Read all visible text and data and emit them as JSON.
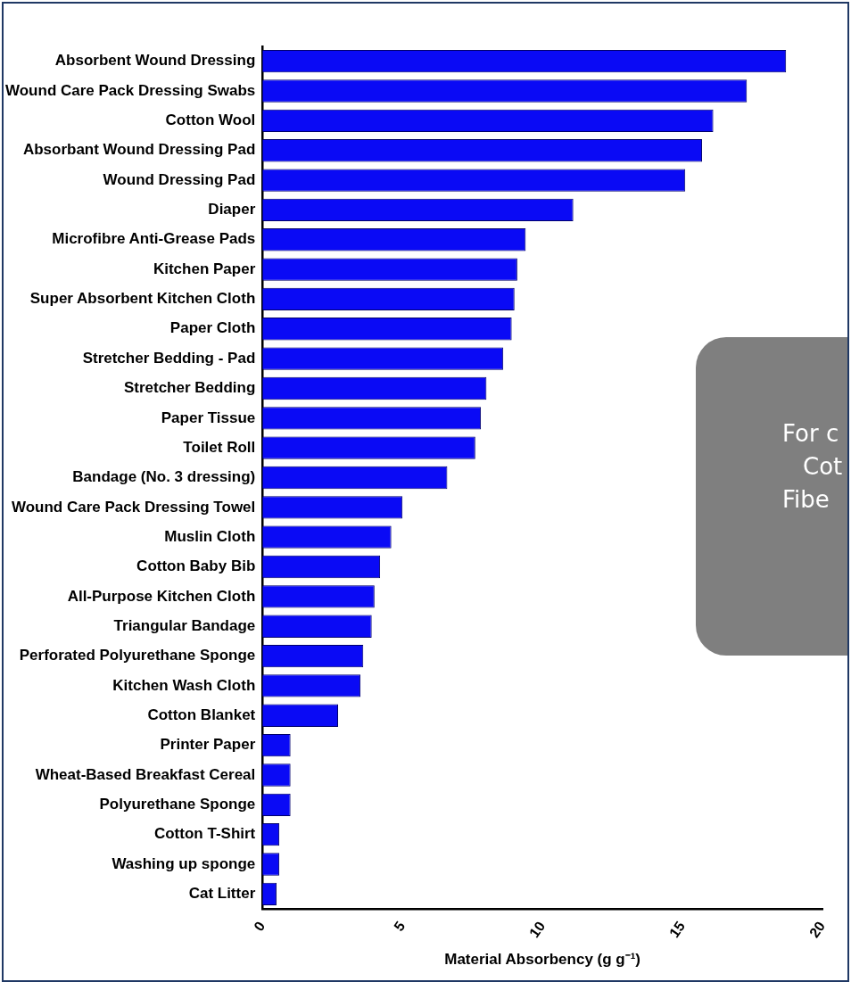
{
  "chart_data": {
    "type": "bar",
    "orientation": "horizontal",
    "xlabel": "Material Absorbency (g g⁻¹)",
    "categories": [
      "Absorbent Wound Dressing",
      "Wound Care Pack Dressing Swabs",
      "Cotton Wool",
      "Absorbant Wound Dressing Pad",
      "Wound Dressing Pad",
      "Diaper",
      "Microfibre Anti-Grease Pads",
      "Kitchen Paper",
      "Super Absorbent Kitchen Cloth",
      "Paper Cloth",
      "Stretcher Bedding - Pad",
      "Stretcher Bedding",
      "Paper Tissue",
      "Toilet Roll",
      "Bandage (No. 3 dressing)",
      "Wound Care Pack Dressing Towel",
      "Muslin Cloth",
      "Cotton Baby Bib",
      "All-Purpose Kitchen Cloth",
      "Triangular Bandage",
      "Perforated Polyurethane Sponge",
      "Kitchen Wash Cloth",
      "Cotton Blanket",
      "Printer Paper",
      "Wheat-Based Breakfast Cereal",
      "Polyurethane Sponge",
      "Cotton T-Shirt",
      "Washing up sponge",
      "Cat Litter"
    ],
    "values": [
      18.7,
      17.3,
      16.1,
      15.7,
      15.1,
      11.1,
      9.4,
      9.1,
      9.0,
      8.9,
      8.6,
      8.0,
      7.8,
      7.6,
      6.6,
      5.0,
      4.6,
      4.2,
      4.0,
      3.9,
      3.6,
      3.5,
      2.7,
      1.0,
      1.0,
      1.0,
      0.6,
      0.6,
      0.5
    ],
    "color": "#0a0af5",
    "xlim": [
      0,
      20
    ],
    "xticks": [
      0,
      5,
      10,
      15,
      20
    ],
    "grid": false,
    "legend": false,
    "annotations": [
      "For c",
      "Cot",
      "Fibe"
    ]
  }
}
